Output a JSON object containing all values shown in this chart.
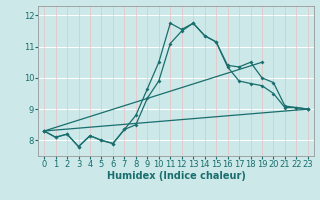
{
  "xlabel": "Humidex (Indice chaleur)",
  "bg_color": "#cce8e8",
  "grid_color_h": "#ffffff",
  "grid_color_v": "#e8c0c0",
  "line_color": "#1a6e6e",
  "xlim": [
    -0.5,
    23.5
  ],
  "ylim": [
    7.5,
    12.3
  ],
  "yticks": [
    8,
    9,
    10,
    11,
    12
  ],
  "xticks": [
    0,
    1,
    2,
    3,
    4,
    5,
    6,
    7,
    8,
    9,
    10,
    11,
    12,
    13,
    14,
    15,
    16,
    17,
    18,
    19,
    20,
    21,
    22,
    23
  ],
  "curve1_x": [
    0,
    1,
    2,
    3,
    4,
    5,
    6,
    7,
    8,
    9,
    10,
    11,
    12,
    13,
    14,
    15,
    16,
    17,
    18,
    19,
    20,
    21,
    22,
    23
  ],
  "curve1_y": [
    8.3,
    8.1,
    8.2,
    7.8,
    8.15,
    8.0,
    7.9,
    8.35,
    8.8,
    9.65,
    10.5,
    11.75,
    11.55,
    11.75,
    11.35,
    11.15,
    10.4,
    10.35,
    10.5,
    10.0,
    9.85,
    9.1,
    9.05,
    9.0
  ],
  "curve2_x": [
    0,
    1,
    2,
    3,
    4,
    5,
    6,
    7,
    8,
    9,
    10,
    11,
    12,
    13,
    14,
    15,
    16,
    17,
    18,
    19,
    20,
    21,
    22,
    23
  ],
  "curve2_y": [
    8.3,
    8.1,
    8.2,
    7.8,
    8.15,
    8.0,
    7.9,
    8.35,
    8.5,
    9.35,
    9.9,
    11.1,
    11.5,
    11.75,
    11.35,
    11.15,
    10.35,
    9.9,
    9.82,
    9.75,
    9.5,
    9.05,
    9.05,
    9.0
  ],
  "line3_x": [
    0,
    23
  ],
  "line3_y": [
    8.3,
    9.0
  ],
  "line4_x": [
    0,
    19
  ],
  "line4_y": [
    8.3,
    10.5
  ],
  "xlabel_fontsize": 7,
  "tick_fontsize": 6
}
